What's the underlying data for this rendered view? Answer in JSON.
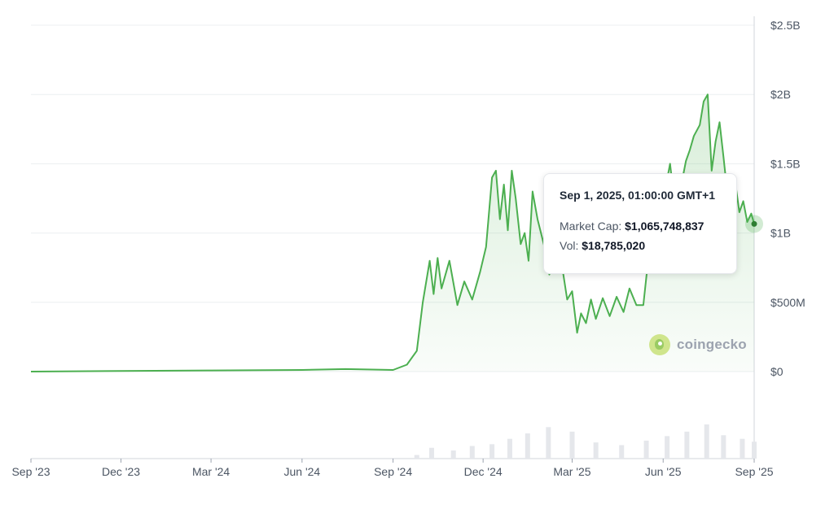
{
  "chart_data": {
    "type": "area",
    "title": "",
    "xlabel": "",
    "ylabel": "",
    "ylim": [
      0,
      2500000000
    ],
    "y_ticks": [
      {
        "value": 2500000000,
        "label": "$2.5B"
      },
      {
        "value": 2000000000,
        "label": "$2B"
      },
      {
        "value": 1500000000,
        "label": "$1.5B"
      },
      {
        "value": 1000000000,
        "label": "$1B"
      },
      {
        "value": 500000000,
        "label": "$500M"
      },
      {
        "value": 0,
        "label": "$0"
      }
    ],
    "x_ticks": [
      "Sep '23",
      "Dec '23",
      "Mar '24",
      "Jun '24",
      "Sep '24",
      "Dec '24",
      "Mar '25",
      "Jun '25",
      "Sep '25"
    ],
    "x_range": [
      "2023-09-01",
      "2025-09-01"
    ],
    "grid": true,
    "legend": "none",
    "line_color": "#4caf50",
    "series": [
      {
        "x": [
          "2023-09-01",
          "2024-03-01",
          "2024-06-01",
          "2024-07-15",
          "2024-09-01",
          "2024-09-15",
          "2024-09-25",
          "2024-10-01",
          "2024-10-08",
          "2024-10-12",
          "2024-10-16",
          "2024-10-20",
          "2024-10-28",
          "2024-11-05",
          "2024-11-12",
          "2024-11-20",
          "2024-11-28",
          "2024-12-04",
          "2024-12-10",
          "2024-12-14",
          "2024-12-18",
          "2024-12-22",
          "2024-12-26",
          "2024-12-30",
          "2025-01-03",
          "2025-01-08",
          "2025-01-12",
          "2025-01-16",
          "2025-01-20",
          "2025-01-25",
          "2025-02-01",
          "2025-02-06",
          "2025-02-10",
          "2025-02-14",
          "2025-02-18",
          "2025-02-24",
          "2025-03-01",
          "2025-03-06",
          "2025-03-10",
          "2025-03-15",
          "2025-03-20",
          "2025-03-25",
          "2025-04-01",
          "2025-04-08",
          "2025-04-15",
          "2025-04-22",
          "2025-04-28",
          "2025-05-05",
          "2025-05-12",
          "2025-05-18",
          "2025-05-24",
          "2025-05-28",
          "2025-06-01",
          "2025-06-04",
          "2025-06-08",
          "2025-06-12",
          "2025-06-18",
          "2025-06-24",
          "2025-06-28",
          "2025-07-02",
          "2025-07-08",
          "2025-07-12",
          "2025-07-16",
          "2025-07-20",
          "2025-07-24",
          "2025-07-28",
          "2025-08-01",
          "2025-08-05",
          "2025-08-09",
          "2025-08-13",
          "2025-08-17",
          "2025-08-21",
          "2025-08-25",
          "2025-08-29",
          "2025-09-01"
        ],
        "values": [
          0,
          8000000,
          12000000,
          18000000,
          12000000,
          50000000,
          150000000,
          500000000,
          800000000,
          560000000,
          820000000,
          600000000,
          800000000,
          480000000,
          650000000,
          520000000,
          720000000,
          900000000,
          1400000000,
          1450000000,
          1100000000,
          1350000000,
          1020000000,
          1450000000,
          1250000000,
          920000000,
          1000000000,
          800000000,
          1300000000,
          1100000000,
          900000000,
          700000000,
          820000000,
          720000000,
          800000000,
          520000000,
          580000000,
          280000000,
          420000000,
          350000000,
          520000000,
          380000000,
          530000000,
          400000000,
          540000000,
          430000000,
          600000000,
          480000000,
          480000000,
          880000000,
          720000000,
          1100000000,
          1200000000,
          1350000000,
          1500000000,
          1250000000,
          1300000000,
          1520000000,
          1600000000,
          1700000000,
          1780000000,
          1950000000,
          2000000000,
          1450000000,
          1660000000,
          1800000000,
          1550000000,
          1280000000,
          1100000000,
          1360000000,
          1150000000,
          1230000000,
          1080000000,
          1140000000,
          1065748837
        ]
      }
    ],
    "volume_series": {
      "x": [
        "2024-09-25",
        "2024-10-10",
        "2024-11-01",
        "2024-11-20",
        "2024-12-10",
        "2024-12-28",
        "2025-01-15",
        "2025-02-05",
        "2025-03-01",
        "2025-03-25",
        "2025-04-20",
        "2025-05-15",
        "2025-06-05",
        "2025-06-25",
        "2025-07-15",
        "2025-08-01",
        "2025-08-20",
        "2025-09-01"
      ],
      "values": [
        4000000,
        12000000,
        9000000,
        14000000,
        16000000,
        22000000,
        28000000,
        35000000,
        30000000,
        18000000,
        15000000,
        20000000,
        25000000,
        30000000,
        38000000,
        26000000,
        22000000,
        18785020
      ]
    },
    "tooltip": {
      "date": "Sep 1, 2025, 01:00:00 GMT+1",
      "market_cap_label": "Market Cap:",
      "market_cap_value": "$1,065,748,837",
      "vol_label": "Vol:",
      "vol_value": "$18,785,020"
    },
    "watermark": "coingecko"
  }
}
